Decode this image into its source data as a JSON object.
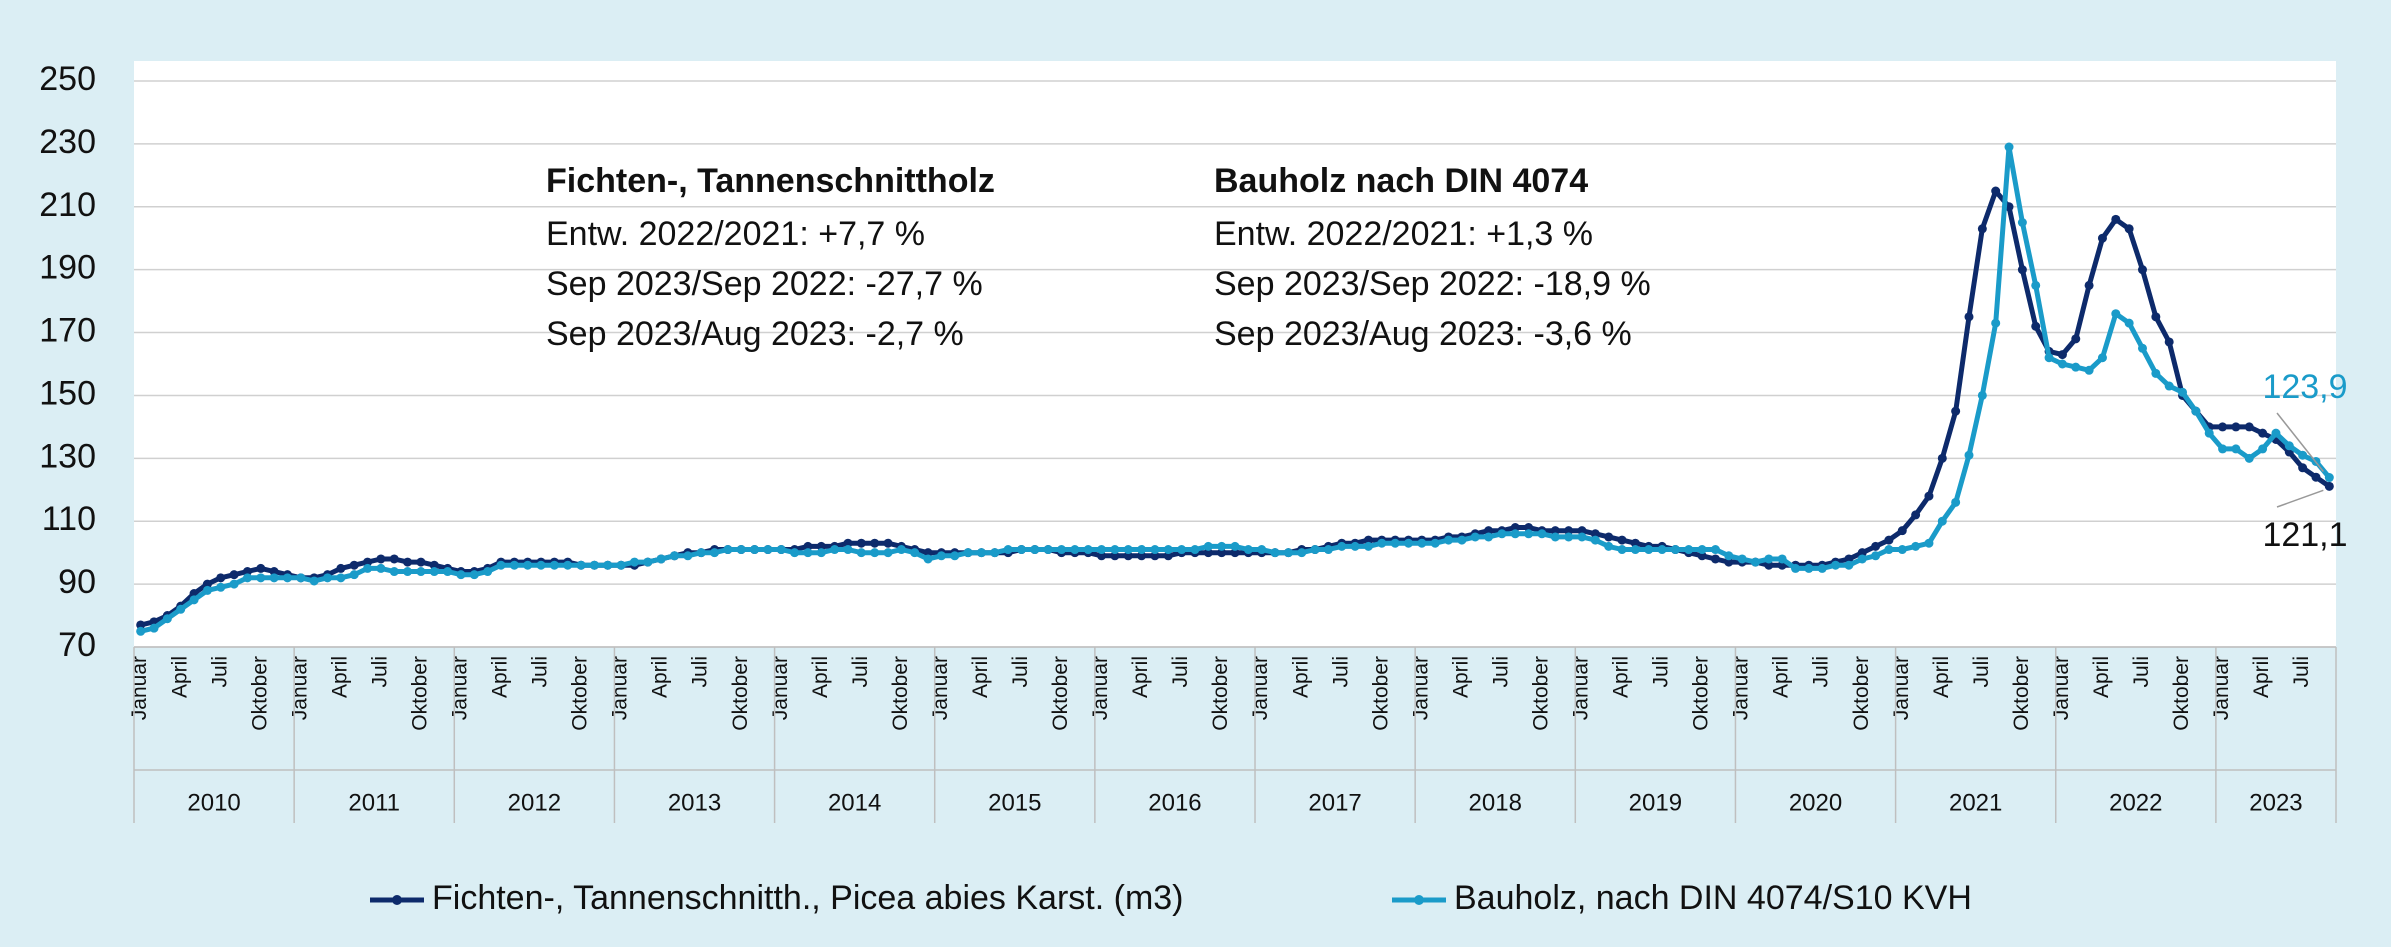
{
  "chart_data": {
    "type": "line",
    "categories": [
      "Januar",
      null,
      null,
      "April",
      null,
      null,
      "Juli",
      null,
      null,
      "Oktober",
      null,
      null,
      "Januar",
      null,
      null,
      "April",
      null,
      null,
      "Juli",
      null,
      null,
      "Oktober",
      null,
      null,
      "Januar",
      null,
      null,
      "April",
      null,
      null,
      "Juli",
      null,
      null,
      "Oktober",
      null,
      null,
      "Januar",
      null,
      null,
      "April",
      null,
      null,
      "Juli",
      null,
      null,
      "Oktober",
      null,
      null,
      "Januar",
      null,
      null,
      "April",
      null,
      null,
      "Juli",
      null,
      null,
      "Oktober",
      null,
      null,
      "Januar",
      null,
      null,
      "April",
      null,
      null,
      "Juli",
      null,
      null,
      "Oktober",
      null,
      null,
      "Januar",
      null,
      null,
      "April",
      null,
      null,
      "Juli",
      null,
      null,
      "Oktober",
      null,
      null,
      "Januar",
      null,
      null,
      "April",
      null,
      null,
      "Juli",
      null,
      null,
      "Oktober",
      null,
      null,
      "Januar",
      null,
      null,
      "April",
      null,
      null,
      "Juli",
      null,
      null,
      "Oktober",
      null,
      null,
      "Januar",
      null,
      null,
      "April",
      null,
      null,
      "Juli",
      null,
      null,
      "Oktober",
      null,
      null,
      "Januar",
      null,
      null,
      "April",
      null,
      null,
      "Juli",
      null,
      null,
      "Oktober",
      null,
      null,
      "Januar",
      null,
      null,
      "April",
      null,
      null,
      "Juli",
      null,
      null,
      "Oktober",
      null,
      null,
      "Januar",
      null,
      null,
      "April",
      null,
      null,
      "Juli",
      null,
      null,
      "Oktober",
      null,
      null,
      "Januar",
      null,
      null,
      "April",
      null,
      null,
      "Juli",
      null,
      null
    ],
    "years": [
      "2010",
      "2011",
      "2012",
      "2013",
      "2014",
      "2015",
      "2016",
      "2017",
      "2018",
      "2019",
      "2020",
      "2021",
      "2022",
      "2023"
    ],
    "ylim": [
      70,
      250
    ],
    "yticks": [
      70,
      90,
      110,
      130,
      150,
      170,
      190,
      210,
      230,
      250
    ],
    "grid": true,
    "annotations": [
      {
        "title": "Fichten-, Tannenschnittholz",
        "lines": [
          "Entw. 2022/2021: +7,7 %",
          "Sep 2023/Sep 2022: -27,7 %",
          "Sep 2023/Aug 2023: -2,7 %"
        ]
      },
      {
        "title": "Bauholz nach DIN 4074",
        "lines": [
          "Entw. 2022/2021: +1,3 %",
          "Sep 2023/Sep 2022: -18,9 %",
          "Sep 2023/Aug 2023: -3,6 %"
        ]
      }
    ],
    "series": [
      {
        "name": "Fichten-, Tannenschnitth., Picea abies Karst. (m3)",
        "color": "#0d2a6b",
        "label_color": "#111111",
        "values": [
          77,
          78,
          80,
          83,
          87,
          90,
          92,
          93,
          94,
          95,
          94,
          93,
          92,
          92,
          93,
          95,
          96,
          97,
          98,
          98,
          97,
          97,
          96,
          95,
          94,
          94,
          95,
          97,
          97,
          97,
          97,
          97,
          97,
          96,
          96,
          96,
          96,
          96,
          97,
          98,
          99,
          100,
          100,
          101,
          101,
          101,
          101,
          101,
          101,
          101,
          102,
          102,
          102,
          103,
          103,
          103,
          103,
          102,
          101,
          100,
          100,
          100,
          100,
          100,
          100,
          100,
          101,
          101,
          101,
          100,
          100,
          100,
          99,
          99,
          99,
          99,
          99,
          99,
          100,
          100,
          100,
          100,
          100,
          100,
          100,
          100,
          100,
          101,
          101,
          102,
          103,
          103,
          104,
          104,
          104,
          104,
          104,
          104,
          105,
          105,
          106,
          107,
          107,
          108,
          108,
          107,
          107,
          107,
          107,
          106,
          105,
          104,
          103,
          102,
          102,
          101,
          100,
          99,
          98,
          97,
          97,
          97,
          96,
          96,
          96,
          96,
          96,
          97,
          98,
          100,
          102,
          104,
          107,
          112,
          118,
          130,
          145,
          175,
          203,
          215,
          210,
          190,
          172,
          164,
          163,
          168,
          185,
          200,
          206,
          203,
          190,
          175,
          167,
          150,
          145,
          140,
          140,
          140,
          140,
          138,
          136,
          132,
          127,
          124,
          121.1
        ],
        "value_labels": [
          null,
          null,
          null,
          null,
          null,
          null,
          null,
          null,
          null,
          null,
          null,
          null,
          null,
          null,
          null,
          null,
          null,
          null,
          null,
          null,
          null,
          null,
          null,
          null,
          null,
          null,
          null,
          null,
          null,
          null,
          null,
          null,
          null,
          null,
          null,
          null,
          null,
          null,
          null,
          null,
          null,
          null,
          null,
          null,
          null,
          null,
          null,
          null,
          null,
          null,
          null,
          null,
          null,
          null,
          null,
          null,
          null,
          null,
          null,
          null,
          null,
          null,
          null,
          null,
          null,
          null,
          null,
          null,
          null,
          null,
          null,
          null,
          null,
          null,
          null,
          null,
          null,
          null,
          null,
          null,
          null,
          null,
          null,
          null,
          null,
          null,
          null,
          null,
          null,
          null,
          null,
          null,
          null,
          null,
          null,
          null,
          null,
          null,
          null,
          null,
          null,
          null,
          null,
          null,
          null,
          null,
          null,
          null,
          null,
          null,
          null,
          null,
          null,
          null,
          null,
          null,
          null,
          null,
          null,
          null,
          null,
          null,
          null,
          null,
          null,
          null,
          null,
          null,
          null,
          null,
          null,
          null,
          null,
          null,
          null,
          null,
          null,
          null,
          null,
          null,
          null,
          null,
          null,
          null,
          null,
          null,
          null,
          null,
          null,
          null,
          null,
          null,
          null,
          null,
          null,
          null,
          null,
          null,
          null,
          null,
          null,
          null,
          null,
          null,
          "121,1"
        ]
      },
      {
        "name": "Bauholz, nach DIN 4074/S10 KVH",
        "color": "#1a9bc9",
        "label_color": "#1a9bc9",
        "values": [
          75,
          76,
          79,
          82,
          85,
          88,
          89,
          90,
          92,
          92,
          92,
          92,
          92,
          91,
          92,
          92,
          93,
          95,
          95,
          94,
          94,
          94,
          94,
          94,
          93,
          93,
          94,
          96,
          96,
          96,
          96,
          96,
          96,
          96,
          96,
          96,
          96,
          97,
          97,
          98,
          99,
          99,
          100,
          100,
          101,
          101,
          101,
          101,
          101,
          100,
          100,
          100,
          101,
          101,
          100,
          100,
          100,
          101,
          100,
          98,
          99,
          99,
          100,
          100,
          100,
          101,
          101,
          101,
          101,
          101,
          101,
          101,
          101,
          101,
          101,
          101,
          101,
          101,
          101,
          101,
          102,
          102,
          102,
          101,
          101,
          100,
          100,
          100,
          101,
          101,
          102,
          102,
          102,
          103,
          103,
          103,
          103,
          103,
          104,
          104,
          105,
          105,
          106,
          106,
          106,
          106,
          105,
          105,
          105,
          104,
          102,
          101,
          101,
          101,
          101,
          101,
          101,
          101,
          101,
          99,
          98,
          97,
          98,
          98,
          95,
          95,
          95,
          96,
          96,
          98,
          99,
          101,
          101,
          102,
          103,
          110,
          116,
          131,
          150,
          173,
          229,
          205,
          185,
          162,
          160,
          159,
          158,
          162,
          176,
          173,
          165,
          157,
          153,
          151,
          145,
          138,
          133,
          133,
          130,
          133,
          138,
          134,
          131,
          129,
          123.9
        ],
        "value_labels": [
          null,
          null,
          null,
          null,
          null,
          null,
          null,
          null,
          null,
          null,
          null,
          null,
          null,
          null,
          null,
          null,
          null,
          null,
          null,
          null,
          null,
          null,
          null,
          null,
          null,
          null,
          null,
          null,
          null,
          null,
          null,
          null,
          null,
          null,
          null,
          null,
          null,
          null,
          null,
          null,
          null,
          null,
          null,
          null,
          null,
          null,
          null,
          null,
          null,
          null,
          null,
          null,
          null,
          null,
          null,
          null,
          null,
          null,
          null,
          null,
          null,
          null,
          null,
          null,
          null,
          null,
          null,
          null,
          null,
          null,
          null,
          null,
          null,
          null,
          null,
          null,
          null,
          null,
          null,
          null,
          null,
          null,
          null,
          null,
          null,
          null,
          null,
          null,
          null,
          null,
          null,
          null,
          null,
          null,
          null,
          null,
          null,
          null,
          null,
          null,
          null,
          null,
          null,
          null,
          null,
          null,
          null,
          null,
          null,
          null,
          null,
          null,
          null,
          null,
          null,
          null,
          null,
          null,
          null,
          null,
          null,
          null,
          null,
          null,
          null,
          null,
          null,
          null,
          null,
          null,
          null,
          null,
          null,
          null,
          null,
          null,
          null,
          null,
          null,
          null,
          null,
          null,
          null,
          null,
          null,
          null,
          null,
          null,
          null,
          null,
          null,
          null,
          null,
          null,
          null,
          null,
          null,
          null,
          null,
          null,
          null,
          null,
          null,
          null,
          "123,9"
        ]
      }
    ]
  }
}
